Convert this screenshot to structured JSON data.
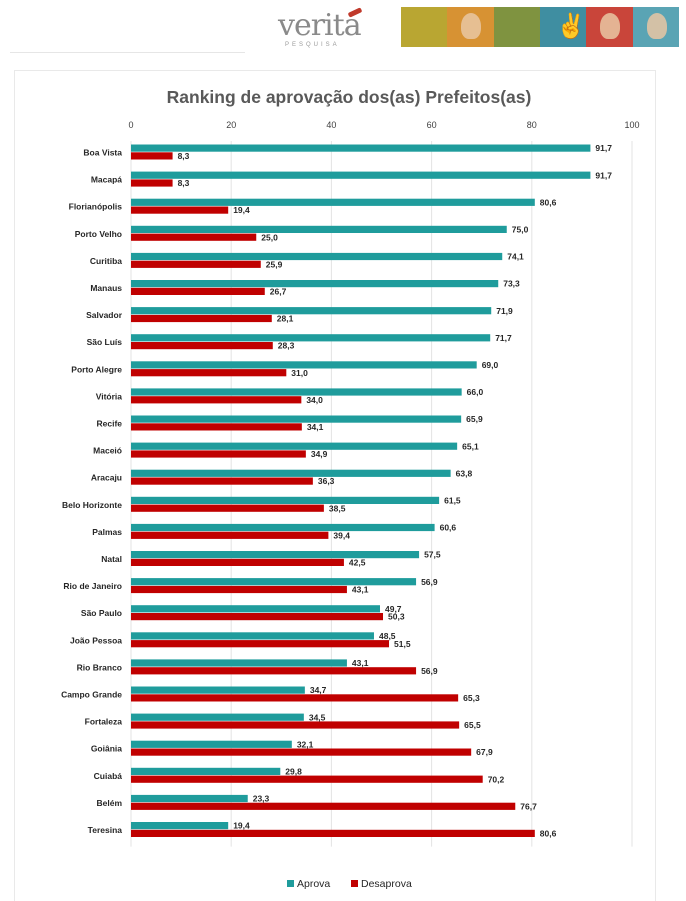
{
  "header": {
    "logo_text": "veritá",
    "logo_subtext": "PESQUISA"
  },
  "colors": {
    "approve": "#1f9c9c",
    "disapprove": "#c00000"
  },
  "chart_data": {
    "type": "bar",
    "orientation": "horizontal",
    "title": "Ranking de aprovação dos(as) Prefeitos(as)",
    "xlim": [
      0,
      100
    ],
    "xticks": [
      0,
      20,
      40,
      60,
      80,
      100
    ],
    "grid": true,
    "legend_position": "bottom",
    "categories": [
      "Boa Vista",
      "Macapá",
      "Florianópolis",
      "Porto Velho",
      "Curitiba",
      "Manaus",
      "Salvador",
      "São Luís",
      "Porto Alegre",
      "Vitória",
      "Recife",
      "Maceió",
      "Aracaju",
      "Belo Horizonte",
      "Palmas",
      "Natal",
      "Rio de Janeiro",
      "São Paulo",
      "João Pessoa",
      "Rio Branco",
      "Campo Grande",
      "Fortaleza",
      "Goiânia",
      "Cuiabá",
      "Belém",
      "Teresina"
    ],
    "series": [
      {
        "name": "Aprova",
        "values": [
          91.7,
          91.7,
          80.6,
          75.0,
          74.1,
          73.3,
          71.9,
          71.7,
          69.0,
          66.0,
          65.9,
          65.1,
          63.8,
          61.5,
          60.6,
          57.5,
          56.9,
          49.7,
          48.5,
          43.1,
          34.7,
          34.5,
          32.1,
          29.8,
          23.3,
          19.4
        ]
      },
      {
        "name": "Desaprova",
        "values": [
          8.3,
          8.3,
          19.4,
          25.0,
          25.9,
          26.7,
          28.1,
          28.3,
          31.0,
          34.0,
          34.1,
          34.9,
          36.3,
          38.5,
          39.4,
          42.5,
          43.1,
          50.3,
          51.5,
          56.9,
          65.3,
          65.5,
          67.9,
          70.2,
          76.7,
          80.6
        ]
      }
    ],
    "value_labels": {
      "Aprova": [
        "91,7",
        "91,7",
        "80,6",
        "75,0",
        "74,1",
        "73,3",
        "71,9",
        "71,7",
        "69,0",
        "66,0",
        "65,9",
        "65,1",
        "63,8",
        "61,5",
        "60,6",
        "57,5",
        "56,9",
        "49,7",
        "48,5",
        "43,1",
        "34,7",
        "34,5",
        "32,1",
        "29,8",
        "23,3",
        "19,4"
      ],
      "Desaprova": [
        "8,3",
        "8,3",
        "19,4",
        "25,0",
        "25,9",
        "26,7",
        "28,1",
        "28,3",
        "31,0",
        "34,0",
        "34,1",
        "34,9",
        "36,3",
        "38,5",
        "39,4",
        "42,5",
        "43,1",
        "50,3",
        "51,5",
        "56,9",
        "65,3",
        "65,5",
        "67,9",
        "70,2",
        "76,7",
        "80,6"
      ]
    }
  }
}
